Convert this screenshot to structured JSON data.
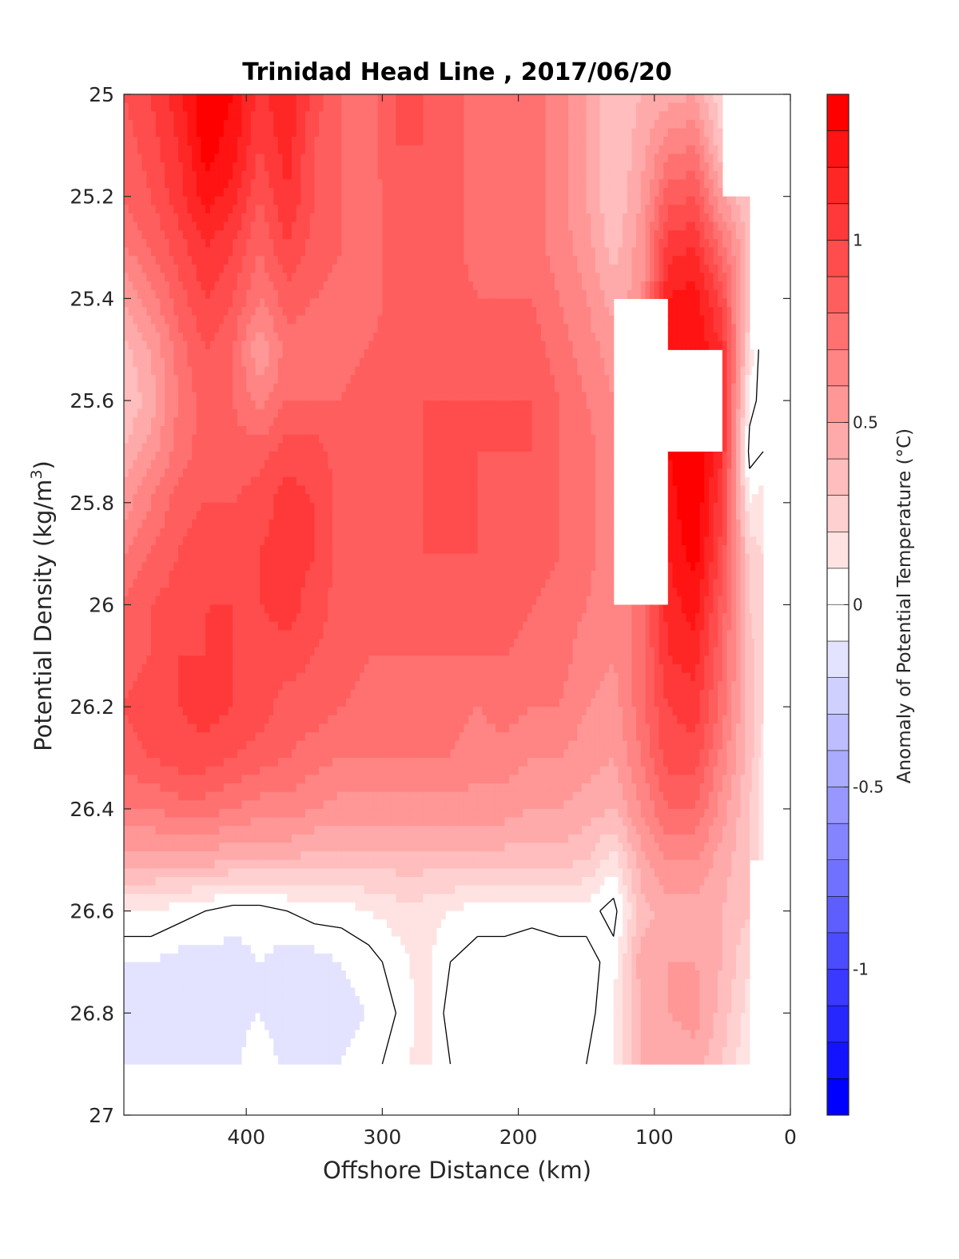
{
  "chart_data": {
    "type": "heatmap",
    "title": "Trinidad Head Line , 2017/06/20",
    "xlabel": "Offshore Distance (km)",
    "ylabel_main": "Potential Density (kg/m",
    "ylabel_sup": "3",
    "ylabel_close": ")",
    "colorbar_label": "Anomaly of Potential Temperature (°C)",
    "xlim": [
      490,
      0
    ],
    "ylim": [
      25,
      27
    ],
    "x_reversed": true,
    "y_reversed": true,
    "x_ticks": [
      400,
      300,
      200,
      100,
      0
    ],
    "x_tick_labels": [
      "400",
      "300",
      "200",
      "100",
      "0"
    ],
    "y_ticks": [
      25,
      25.2,
      25.4,
      25.6,
      25.8,
      26,
      26.2,
      26.4,
      26.6,
      26.8,
      27
    ],
    "y_tick_labels": [
      "25",
      "25.2",
      "25.4",
      "25.6",
      "25.8",
      "26",
      "26.2",
      "26.4",
      "26.6",
      "26.8",
      "27"
    ],
    "colorbar_range": [
      -1.4,
      1.4
    ],
    "colorbar_levels": 28,
    "colorbar_ticks": [
      1,
      0.5,
      0,
      -0.5,
      -1
    ],
    "colorbar_tick_labels": [
      "1",
      "0.5",
      "0",
      "-0.5",
      "-1"
    ],
    "grid": false,
    "x": [
      490,
      470,
      450,
      430,
      410,
      390,
      370,
      350,
      330,
      310,
      290,
      270,
      250,
      230,
      210,
      190,
      170,
      150,
      130,
      110,
      90,
      70,
      50,
      30,
      20
    ],
    "y": [
      25.0,
      25.1,
      25.2,
      25.3,
      25.4,
      25.5,
      25.6,
      25.7,
      25.8,
      25.9,
      26.0,
      26.1,
      26.2,
      26.3,
      26.4,
      26.5,
      26.6,
      26.7,
      26.8,
      26.9
    ],
    "z_at_x": [
      [
        0.9,
        0.85,
        0.8,
        0.7,
        0.5,
        0.35,
        0.3,
        0.4,
        0.55,
        0.7,
        0.8,
        0.85,
        0.9,
        0.85,
        0.7,
        0.45,
        0.1,
        -0.1,
        -0.1,
        -0.1
      ],
      [
        1.0,
        0.95,
        0.9,
        0.8,
        0.65,
        0.5,
        0.45,
        0.55,
        0.7,
        0.8,
        0.9,
        0.9,
        0.95,
        0.9,
        0.7,
        0.45,
        0.1,
        -0.1,
        -0.15,
        -0.2
      ],
      [
        1.15,
        1.1,
        1.05,
        0.95,
        0.85,
        0.75,
        0.7,
        0.75,
        0.85,
        0.9,
        0.95,
        1.0,
        1.0,
        0.95,
        0.75,
        0.45,
        0.05,
        -0.15,
        -0.15,
        -0.15
      ],
      [
        1.4,
        1.35,
        1.25,
        1.1,
        1.0,
        0.9,
        0.85,
        0.85,
        0.9,
        0.95,
        1.0,
        1.0,
        1.05,
        0.95,
        0.75,
        0.45,
        0.0,
        -0.15,
        -0.15,
        -0.15
      ],
      [
        1.3,
        1.25,
        1.15,
        1.0,
        0.9,
        0.8,
        0.8,
        0.85,
        0.9,
        0.95,
        1.0,
        1.0,
        1.0,
        0.9,
        0.7,
        0.4,
        -0.05,
        -0.15,
        -0.15,
        -0.15
      ],
      [
        1.05,
        1.0,
        0.9,
        0.8,
        0.7,
        0.5,
        0.65,
        0.85,
        0.95,
        1.0,
        1.0,
        0.95,
        0.95,
        0.85,
        0.65,
        0.4,
        -0.05,
        -0.1,
        -0.1,
        0.0
      ],
      [
        1.2,
        1.15,
        1.1,
        1.0,
        0.85,
        0.75,
        0.8,
        0.95,
        1.05,
        1.05,
        1.05,
        0.95,
        0.85,
        0.8,
        0.65,
        0.4,
        0.0,
        -0.15,
        -0.2,
        -0.15
      ],
      [
        0.95,
        0.9,
        0.9,
        0.85,
        0.8,
        0.75,
        0.8,
        0.95,
        1.0,
        1.0,
        0.95,
        0.9,
        0.85,
        0.75,
        0.6,
        0.35,
        0.05,
        -0.15,
        -0.2,
        -0.1
      ],
      [
        0.8,
        0.8,
        0.8,
        0.8,
        0.75,
        0.75,
        0.8,
        0.85,
        0.85,
        0.85,
        0.85,
        0.85,
        0.8,
        0.7,
        0.55,
        0.35,
        0.05,
        -0.1,
        -0.15,
        -0.1
      ],
      [
        0.75,
        0.75,
        0.75,
        0.75,
        0.75,
        0.8,
        0.85,
        0.85,
        0.85,
        0.85,
        0.85,
        0.8,
        0.75,
        0.7,
        0.55,
        0.35,
        0.1,
        -0.05,
        -0.1,
        -0.05
      ],
      [
        0.9,
        0.9,
        0.85,
        0.85,
        0.85,
        0.85,
        0.85,
        0.85,
        0.85,
        0.85,
        0.85,
        0.8,
        0.75,
        0.7,
        0.55,
        0.35,
        0.15,
        0.05,
        0.0,
        0.05
      ],
      [
        0.9,
        0.9,
        0.9,
        0.9,
        0.9,
        0.9,
        0.9,
        0.9,
        0.9,
        0.9,
        0.85,
        0.8,
        0.75,
        0.7,
        0.55,
        0.35,
        0.15,
        0.15,
        0.15,
        0.15
      ],
      [
        0.85,
        0.85,
        0.85,
        0.85,
        0.85,
        0.85,
        0.9,
        0.95,
        0.95,
        0.9,
        0.85,
        0.8,
        0.75,
        0.7,
        0.55,
        0.35,
        0.1,
        0.0,
        -0.05,
        0.0
      ],
      [
        0.75,
        0.75,
        0.75,
        0.75,
        0.8,
        0.85,
        0.9,
        0.9,
        0.9,
        0.9,
        0.85,
        0.8,
        0.7,
        0.65,
        0.55,
        0.35,
        0.05,
        -0.05,
        -0.1,
        -0.05
      ],
      [
        0.75,
        0.75,
        0.75,
        0.75,
        0.8,
        0.85,
        0.9,
        0.9,
        0.85,
        0.85,
        0.85,
        0.8,
        0.75,
        0.65,
        0.55,
        0.35,
        0.05,
        -0.05,
        -0.1,
        -0.05
      ],
      [
        0.75,
        0.75,
        0.75,
        0.75,
        0.8,
        0.85,
        0.9,
        0.9,
        0.85,
        0.85,
        0.8,
        0.75,
        0.7,
        0.6,
        0.5,
        0.35,
        0.05,
        -0.1,
        -0.1,
        -0.05
      ],
      [
        0.65,
        0.65,
        0.65,
        0.65,
        0.7,
        0.75,
        0.8,
        0.8,
        0.8,
        0.8,
        0.75,
        0.75,
        0.7,
        0.6,
        0.5,
        0.35,
        0.05,
        -0.05,
        -0.1,
        -0.05
      ],
      [
        0.5,
        0.5,
        0.5,
        0.55,
        0.6,
        0.65,
        0.7,
        0.75,
        0.75,
        0.75,
        0.7,
        0.65,
        0.6,
        0.55,
        0.45,
        0.3,
        0.05,
        -0.05,
        -0.05,
        0.0
      ],
      [
        0.3,
        0.3,
        0.3,
        0.35,
        0.45,
        0.55,
        0.6,
        0.6,
        0.6,
        0.6,
        0.6,
        0.6,
        0.55,
        0.5,
        0.4,
        0.15,
        -0.05,
        0.05,
        0.1,
        0.1
      ],
      [
        0.4,
        0.45,
        0.5,
        0.55,
        0.55,
        null,
        null,
        null,
        null,
        null,
        0.75,
        0.75,
        0.75,
        0.7,
        0.6,
        0.45,
        0.35,
        0.45,
        0.4,
        0.4
      ],
      [
        0.45,
        0.65,
        0.85,
        1.05,
        1.2,
        1.3,
        null,
        1.3,
        1.25,
        1.2,
        1.15,
        1.1,
        1.0,
        0.95,
        0.8,
        0.6,
        0.45,
        0.5,
        0.5,
        0.4
      ],
      [
        0.5,
        0.7,
        0.9,
        1.1,
        1.25,
        1.3,
        null,
        1.4,
        1.4,
        1.35,
        1.25,
        1.15,
        1.05,
        0.95,
        0.8,
        0.6,
        0.45,
        0.5,
        0.55,
        0.45
      ],
      [
        0.2,
        0.3,
        0.5,
        0.75,
        0.95,
        1.1,
        1.15,
        1.1,
        1.0,
        0.95,
        0.85,
        0.8,
        0.75,
        0.65,
        0.55,
        0.45,
        0.4,
        0.4,
        0.35,
        0.3
      ],
      [
        null,
        null,
        0.3,
        0.35,
        0.3,
        0.2,
        0.05,
        -0.05,
        0.1,
        0.25,
        0.3,
        0.35,
        0.35,
        0.35,
        0.3,
        0.3,
        0.3,
        0.2,
        0.15,
        0.1
      ],
      [
        null,
        null,
        null,
        null,
        null,
        -0.1,
        -0.05,
        0.0,
        0.15,
        0.2,
        0.2,
        0.2,
        0.2,
        0.15,
        0.15,
        0.15,
        null,
        null,
        null,
        null
      ]
    ]
  }
}
